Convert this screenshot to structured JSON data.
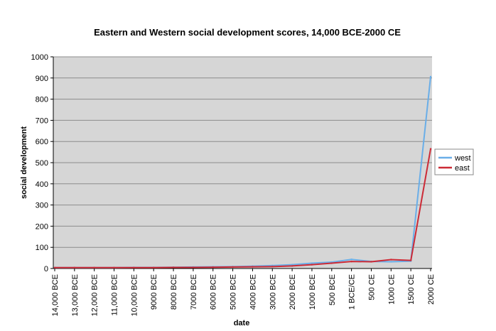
{
  "chart_data": {
    "type": "line",
    "title": "Eastern and Western social development scores, 14,000 BCE-2000 CE",
    "xlabel": "date",
    "ylabel": "social development",
    "ylim": [
      0,
      1000
    ],
    "yticks": [
      0,
      100,
      200,
      300,
      400,
      500,
      600,
      700,
      800,
      900,
      1000
    ],
    "categories": [
      "14,000 BCE",
      "13,000 BCE",
      "12,000 BCE",
      "11,000 BCE",
      "10,000 BCE",
      "9000 BCE",
      "8000 BCE",
      "7000 BCE",
      "6000 BCE",
      "5000 BCE",
      "4000 BCE",
      "3000 BCE",
      "2000 BCE",
      "1000 BCE",
      "500 BCE",
      "1 BCE/CE",
      "500 CE",
      "1000 CE",
      "1500 CE",
      "2000 CE"
    ],
    "series": [
      {
        "name": "west",
        "color": "#6aaee8",
        "values": [
          4,
          4,
          4,
          4,
          5,
          5,
          6,
          7,
          8,
          9,
          11,
          14,
          18,
          25,
          30,
          43,
          33,
          32,
          35,
          906
        ]
      },
      {
        "name": "east",
        "color": "#cc2a36",
        "values": [
          4,
          4,
          4,
          4,
          4,
          4,
          5,
          5,
          6,
          7,
          8,
          9,
          12,
          18,
          25,
          33,
          32,
          42,
          38,
          565
        ]
      }
    ],
    "grid": true,
    "legend_position": "right",
    "plot_background": "#d6d6d6"
  }
}
